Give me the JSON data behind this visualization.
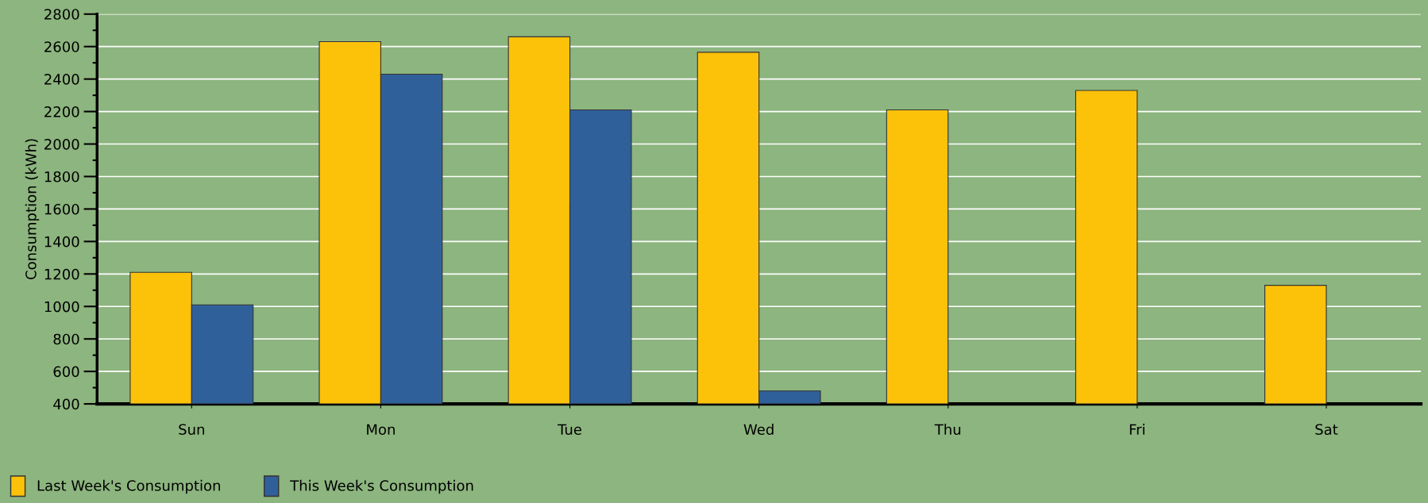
{
  "chart_data": {
    "type": "bar",
    "ylabel": "Consumption (kWh)",
    "categories": [
      "Sun",
      "Mon",
      "Tue",
      "Wed",
      "Thu",
      "Fri",
      "Sat"
    ],
    "series": [
      {
        "name": "Last Week's Consumption",
        "color": "#fcc20a",
        "values": [
          1210,
          2630,
          2660,
          2565,
          2210,
          2330,
          1130
        ]
      },
      {
        "name": "This Week's Consumption",
        "color": "#30609a",
        "values": [
          1010,
          2430,
          2210,
          480,
          null,
          null,
          null
        ]
      }
    ],
    "ylim": [
      400,
      2800
    ],
    "yticks": [
      400,
      600,
      800,
      1000,
      1200,
      1400,
      1600,
      1800,
      2000,
      2200,
      2400,
      2600,
      2800
    ],
    "grid": "y",
    "legend": "bottom left"
  }
}
